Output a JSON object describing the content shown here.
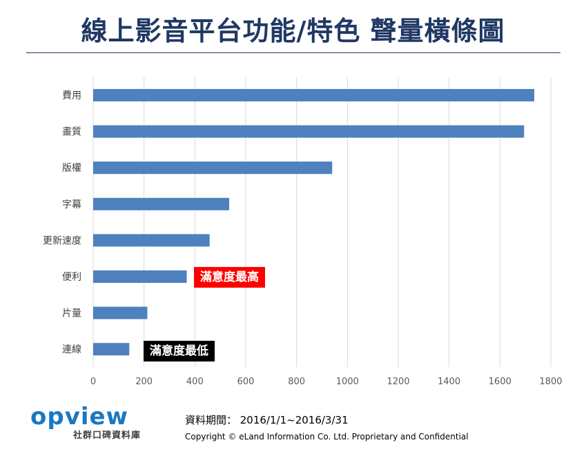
{
  "title": "線上影音平台功能/特色 聲量橫條圖",
  "chart_data": {
    "type": "bar",
    "orientation": "horizontal",
    "categories": [
      "費用",
      "畫質",
      "版權",
      "字幕",
      "更新速度",
      "便利",
      "片量",
      "連線"
    ],
    "values": [
      1735,
      1695,
      940,
      535,
      458,
      368,
      213,
      142
    ],
    "xlim": [
      0,
      1800
    ],
    "xticks": [
      0,
      200,
      400,
      600,
      800,
      1000,
      1200,
      1400,
      1600,
      1800
    ],
    "grid": true,
    "bar_color": "#4e81bd",
    "annotations": [
      {
        "text": "滿意度最高",
        "category": "便利",
        "background": "#ff0000"
      },
      {
        "text": "滿意度最低",
        "category": "連線",
        "background": "#000000"
      }
    ]
  },
  "footer": {
    "logo_text": "opview",
    "logo_subtitle": "社群口碑資料庫",
    "period": "資料期間： 2016/1/1~2016/3/31",
    "copyright": "Copyright © eLand Information Co. Ltd. Proprietary and Confidential"
  },
  "colors": {
    "title": "#1f3864",
    "bar": "#4e81bd",
    "logo": "#1a78c2"
  }
}
